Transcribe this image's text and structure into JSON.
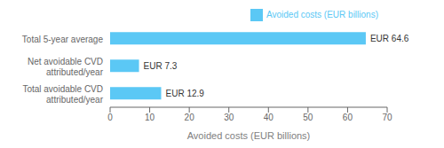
{
  "chart_data": {
    "type": "bar",
    "orientation": "horizontal",
    "categories": [
      "Total avoidable CVD\nattributed/year",
      "Net avoidable CVD\nattributed/year",
      "Total 5-year average"
    ],
    "series": [
      {
        "name": "Avoided costs (EUR billions)",
        "color": "#5BC8F5",
        "values": [
          12.9,
          7.3,
          64.6
        ],
        "value_labels": [
          "EUR 12.9",
          "EUR 7.3",
          "EUR 64.6"
        ]
      }
    ],
    "data_labels": true,
    "xlim": [
      0,
      70
    ],
    "xticks": [
      0,
      10,
      20,
      30,
      40,
      50,
      60,
      70
    ],
    "xlabel": "Avoided costs (EUR billions)",
    "legend": "upper right",
    "grid": false
  }
}
